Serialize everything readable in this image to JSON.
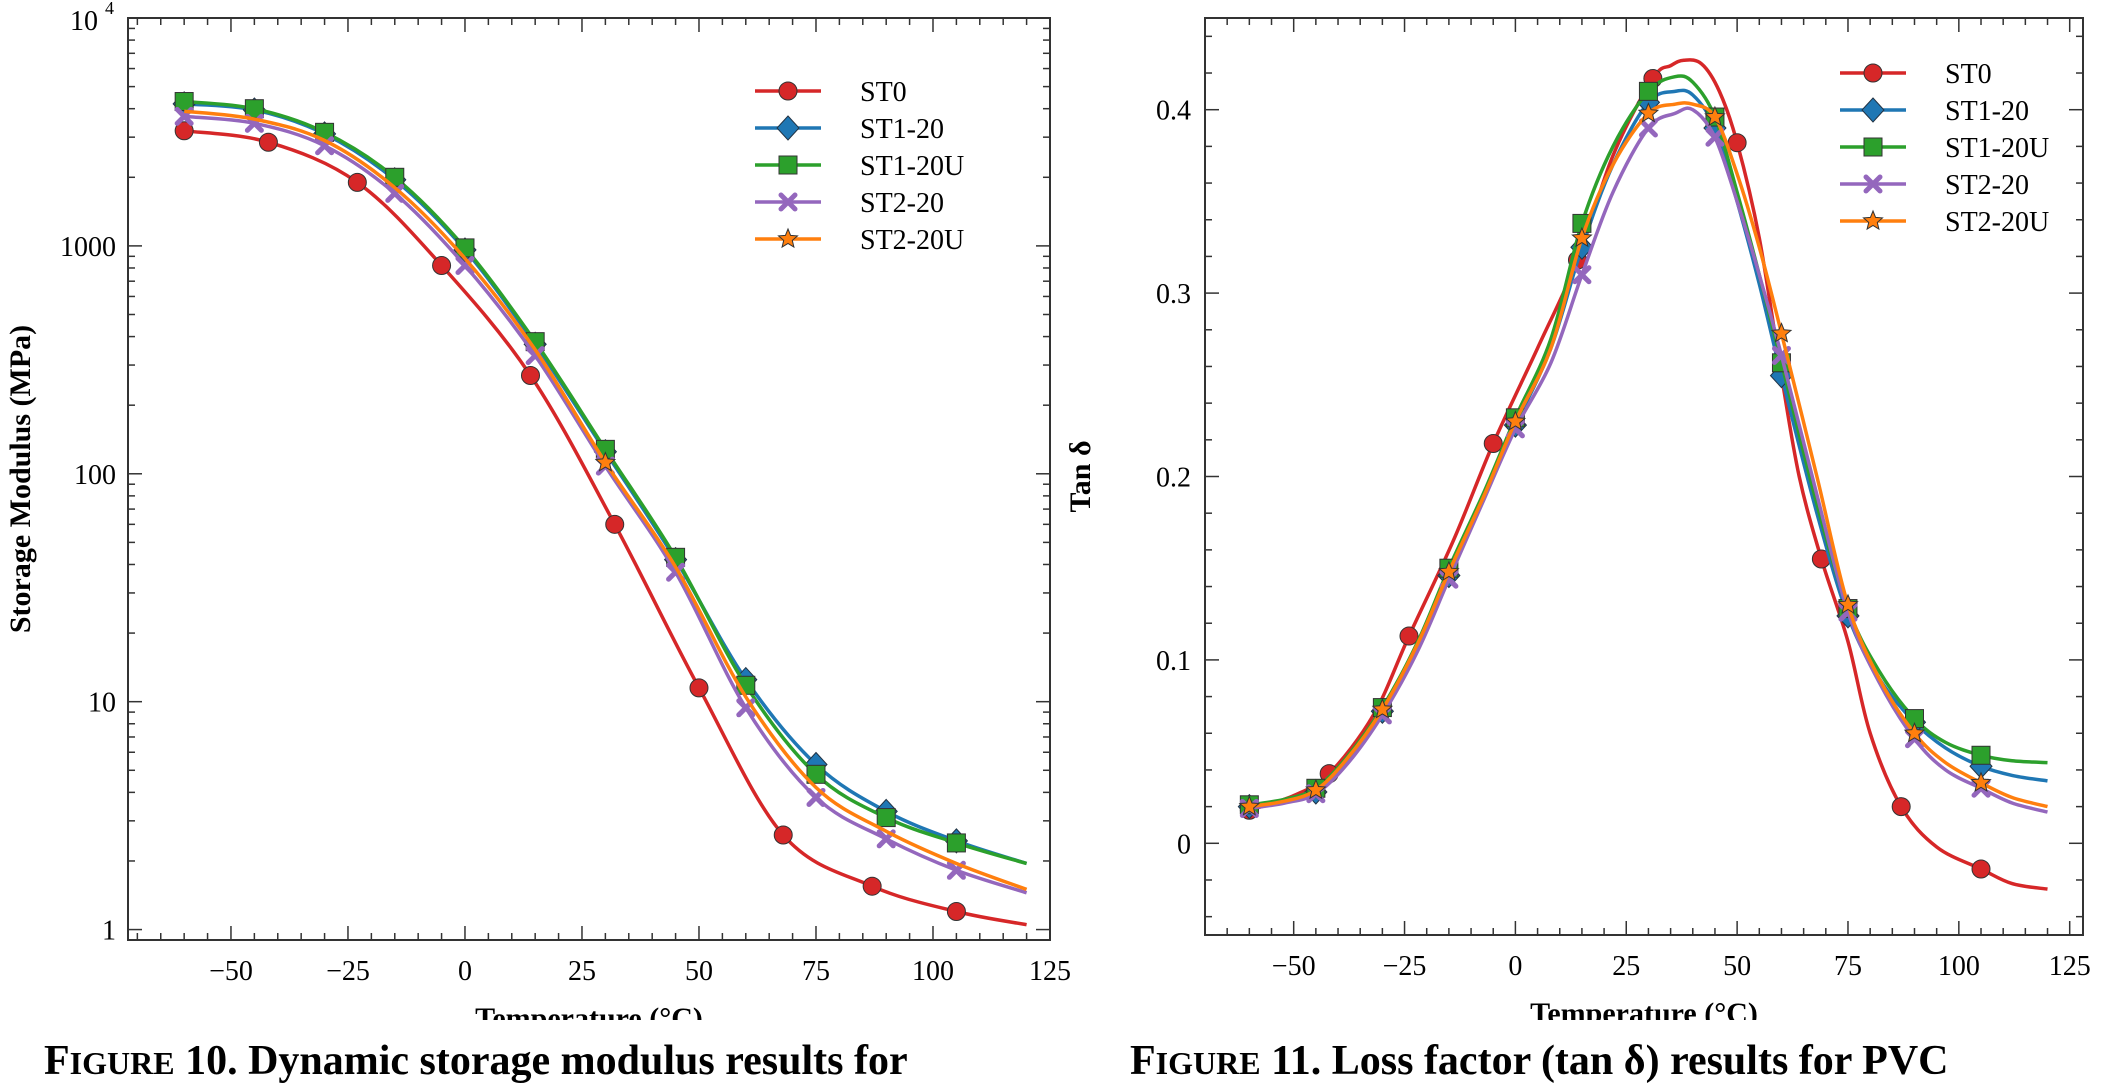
{
  "figures": [
    {
      "caption_prefix": "F",
      "caption_prefix_small": "IGURE",
      "caption_rest": " 10. Dynamic storage modulus results for"
    },
    {
      "caption_prefix": "F",
      "caption_prefix_small": "IGURE",
      "caption_rest": " 11. Loss factor (tan δ) results for PVC"
    }
  ],
  "chart_data": [
    {
      "type": "line",
      "title": "",
      "xlabel": "Temperature (°C)",
      "ylabel": "Storage Modulus (MPa)",
      "yscale": "log",
      "xlim": [
        -72,
        125
      ],
      "ylim": [
        0.9,
        10000
      ],
      "xticks": [
        -50,
        -25,
        0,
        25,
        50,
        75,
        100,
        125
      ],
      "xtick_labels": [
        "−50",
        "−25",
        "0",
        "25",
        "50",
        "75",
        "100",
        "125"
      ],
      "yticks": [
        1,
        10,
        100,
        1000
      ],
      "ytick_labels": [
        "1",
        "10",
        "100",
        "1000"
      ],
      "ytop_label_base": "10",
      "ytop_label_exp": "4",
      "legend_position": "top-right",
      "series": [
        {
          "name": "ST0",
          "color": "#d62728",
          "marker": "circle",
          "x": [
            -60,
            -42,
            -23,
            -5,
            14,
            32,
            50,
            68,
            87,
            105,
            120
          ],
          "y": [
            3200,
            2850,
            1900,
            820,
            270,
            60,
            11.5,
            2.6,
            1.55,
            1.2,
            1.05
          ],
          "markers_x": [
            -60,
            -42,
            -23,
            -5,
            14,
            32,
            50,
            68,
            87,
            105
          ]
        },
        {
          "name": "ST1-20",
          "color": "#1f77b4",
          "marker": "diamond",
          "x": [
            -60,
            -45,
            -30,
            -15,
            0,
            15,
            30,
            45,
            60,
            75,
            90,
            105,
            120
          ],
          "y": [
            4200,
            3950,
            3100,
            1950,
            960,
            370,
            125,
            42,
            12.5,
            5.3,
            3.3,
            2.45,
            1.95
          ],
          "markers_x": [
            -60,
            -45,
            -30,
            -15,
            0,
            15,
            30,
            45,
            60,
            75,
            90,
            105
          ]
        },
        {
          "name": "ST1-20U",
          "color": "#2ca02c",
          "marker": "square",
          "x": [
            -60,
            -45,
            -30,
            -15,
            0,
            15,
            30,
            45,
            60,
            75,
            90,
            105,
            120
          ],
          "y": [
            4300,
            4000,
            3150,
            2000,
            980,
            380,
            128,
            43,
            11.8,
            4.8,
            3.1,
            2.4,
            1.95
          ],
          "markers_x": [
            -60,
            -45,
            -30,
            -15,
            0,
            15,
            30,
            45,
            60,
            75,
            90,
            105
          ]
        },
        {
          "name": "ST2-20",
          "color": "#9467bd",
          "marker": "x",
          "x": [
            -60,
            -45,
            -30,
            -15,
            0,
            15,
            30,
            45,
            60,
            75,
            90,
            105,
            120
          ],
          "y": [
            3700,
            3450,
            2750,
            1700,
            820,
            330,
            108,
            37,
            9.4,
            3.8,
            2.5,
            1.82,
            1.45
          ],
          "markers_x": [
            -60,
            -45,
            -30,
            -15,
            0,
            15,
            30,
            45,
            60,
            75,
            90,
            105
          ]
        },
        {
          "name": "ST2-20U",
          "color": "#ff7f0e",
          "marker": "star",
          "x": [
            -60,
            -45,
            -30,
            -15,
            0,
            15,
            30,
            45,
            60,
            75,
            90,
            105,
            120
          ],
          "y": [
            3900,
            3600,
            2900,
            1800,
            880,
            350,
            112,
            39,
            10.5,
            4.2,
            2.7,
            1.95,
            1.5
          ],
          "markers_x": [
            30
          ]
        }
      ]
    },
    {
      "type": "line",
      "title": "",
      "xlabel": "Temperature (°C)",
      "ylabel": "Tan δ",
      "xlim": [
        -70,
        128
      ],
      "ylim": [
        -0.05,
        0.45
      ],
      "xticks": [
        -50,
        -25,
        0,
        25,
        50,
        75,
        100,
        125
      ],
      "xtick_labels": [
        "−50",
        "−25",
        "0",
        "25",
        "50",
        "75",
        "100",
        "125"
      ],
      "yticks": [
        0,
        0.1,
        0.2,
        0.3,
        0.4
      ],
      "ytick_labels": [
        "0",
        "0.1",
        "0.2",
        "0.3",
        "0.4"
      ],
      "legend_position": "top-right",
      "series": [
        {
          "name": "ST0",
          "color": "#d62728",
          "marker": "circle",
          "x": [
            -60,
            -50,
            -42,
            -32,
            -24,
            -14,
            -5,
            5,
            14,
            22,
            31,
            35,
            38,
            42,
            46,
            50,
            55,
            60,
            64,
            69,
            75,
            80,
            87,
            95,
            105,
            112,
            120
          ],
          "y": [
            0.018,
            0.026,
            0.038,
            0.07,
            0.113,
            0.165,
            0.218,
            0.27,
            0.318,
            0.375,
            0.417,
            0.424,
            0.427,
            0.425,
            0.41,
            0.382,
            0.33,
            0.255,
            0.2,
            0.155,
            0.11,
            0.06,
            0.02,
            -0.002,
            -0.014,
            -0.022,
            -0.025
          ],
          "markers_x": [
            -60,
            -42,
            -24,
            -5,
            14,
            31,
            50,
            69,
            87,
            105
          ]
        },
        {
          "name": "ST1-20",
          "color": "#1f77b4",
          "marker": "diamond",
          "x": [
            -60,
            -52,
            -45,
            -38,
            -30,
            -22,
            -15,
            -7,
            0,
            8,
            15,
            22,
            30,
            36,
            40,
            45,
            50,
            55,
            60,
            68,
            75,
            82,
            90,
            97,
            105,
            112,
            120
          ],
          "y": [
            0.02,
            0.023,
            0.028,
            0.045,
            0.072,
            0.108,
            0.146,
            0.19,
            0.228,
            0.27,
            0.325,
            0.37,
            0.404,
            0.41,
            0.408,
            0.39,
            0.35,
            0.305,
            0.255,
            0.18,
            0.124,
            0.09,
            0.066,
            0.052,
            0.042,
            0.037,
            0.034
          ],
          "markers_x": [
            -60,
            -45,
            -30,
            -15,
            0,
            15,
            30,
            45,
            60,
            75,
            90,
            105
          ]
        },
        {
          "name": "ST1-20U",
          "color": "#2ca02c",
          "marker": "square",
          "x": [
            -60,
            -52,
            -45,
            -38,
            -30,
            -22,
            -15,
            -7,
            0,
            8,
            15,
            22,
            30,
            36,
            40,
            45,
            50,
            55,
            60,
            68,
            75,
            82,
            90,
            97,
            105,
            112,
            120
          ],
          "y": [
            0.021,
            0.024,
            0.03,
            0.047,
            0.074,
            0.11,
            0.15,
            0.192,
            0.232,
            0.275,
            0.338,
            0.38,
            0.41,
            0.418,
            0.415,
            0.396,
            0.355,
            0.31,
            0.262,
            0.185,
            0.128,
            0.094,
            0.068,
            0.055,
            0.048,
            0.045,
            0.044
          ],
          "markers_x": [
            -60,
            -45,
            -30,
            -15,
            0,
            15,
            30,
            45,
            60,
            75,
            90,
            105
          ]
        },
        {
          "name": "ST2-20",
          "color": "#9467bd",
          "marker": "x",
          "x": [
            -60,
            -52,
            -45,
            -38,
            -30,
            -22,
            -15,
            -7,
            0,
            8,
            15,
            22,
            30,
            36,
            40,
            45,
            50,
            55,
            60,
            68,
            75,
            82,
            90,
            97,
            105,
            112,
            120
          ],
          "y": [
            0.019,
            0.022,
            0.027,
            0.043,
            0.07,
            0.105,
            0.144,
            0.188,
            0.226,
            0.262,
            0.31,
            0.355,
            0.39,
            0.398,
            0.4,
            0.385,
            0.35,
            0.31,
            0.266,
            0.19,
            0.126,
            0.088,
            0.057,
            0.04,
            0.03,
            0.022,
            0.017
          ],
          "markers_x": [
            -60,
            -45,
            -30,
            -15,
            0,
            15,
            30,
            45,
            60,
            75,
            90,
            105
          ]
        },
        {
          "name": "ST2-20U",
          "color": "#ff7f0e",
          "marker": "star",
          "x": [
            -60,
            -52,
            -45,
            -38,
            -30,
            -22,
            -15,
            -7,
            0,
            8,
            15,
            22,
            30,
            36,
            40,
            45,
            50,
            55,
            60,
            68,
            75,
            82,
            90,
            97,
            105,
            112,
            120
          ],
          "y": [
            0.02,
            0.023,
            0.029,
            0.046,
            0.073,
            0.109,
            0.148,
            0.19,
            0.23,
            0.27,
            0.33,
            0.37,
            0.398,
            0.403,
            0.403,
            0.396,
            0.365,
            0.325,
            0.278,
            0.2,
            0.13,
            0.09,
            0.06,
            0.044,
            0.033,
            0.025,
            0.02
          ],
          "markers_x": [
            -60,
            -45,
            -30,
            -15,
            0,
            15,
            30,
            45,
            60,
            75,
            90,
            105
          ]
        }
      ]
    }
  ]
}
